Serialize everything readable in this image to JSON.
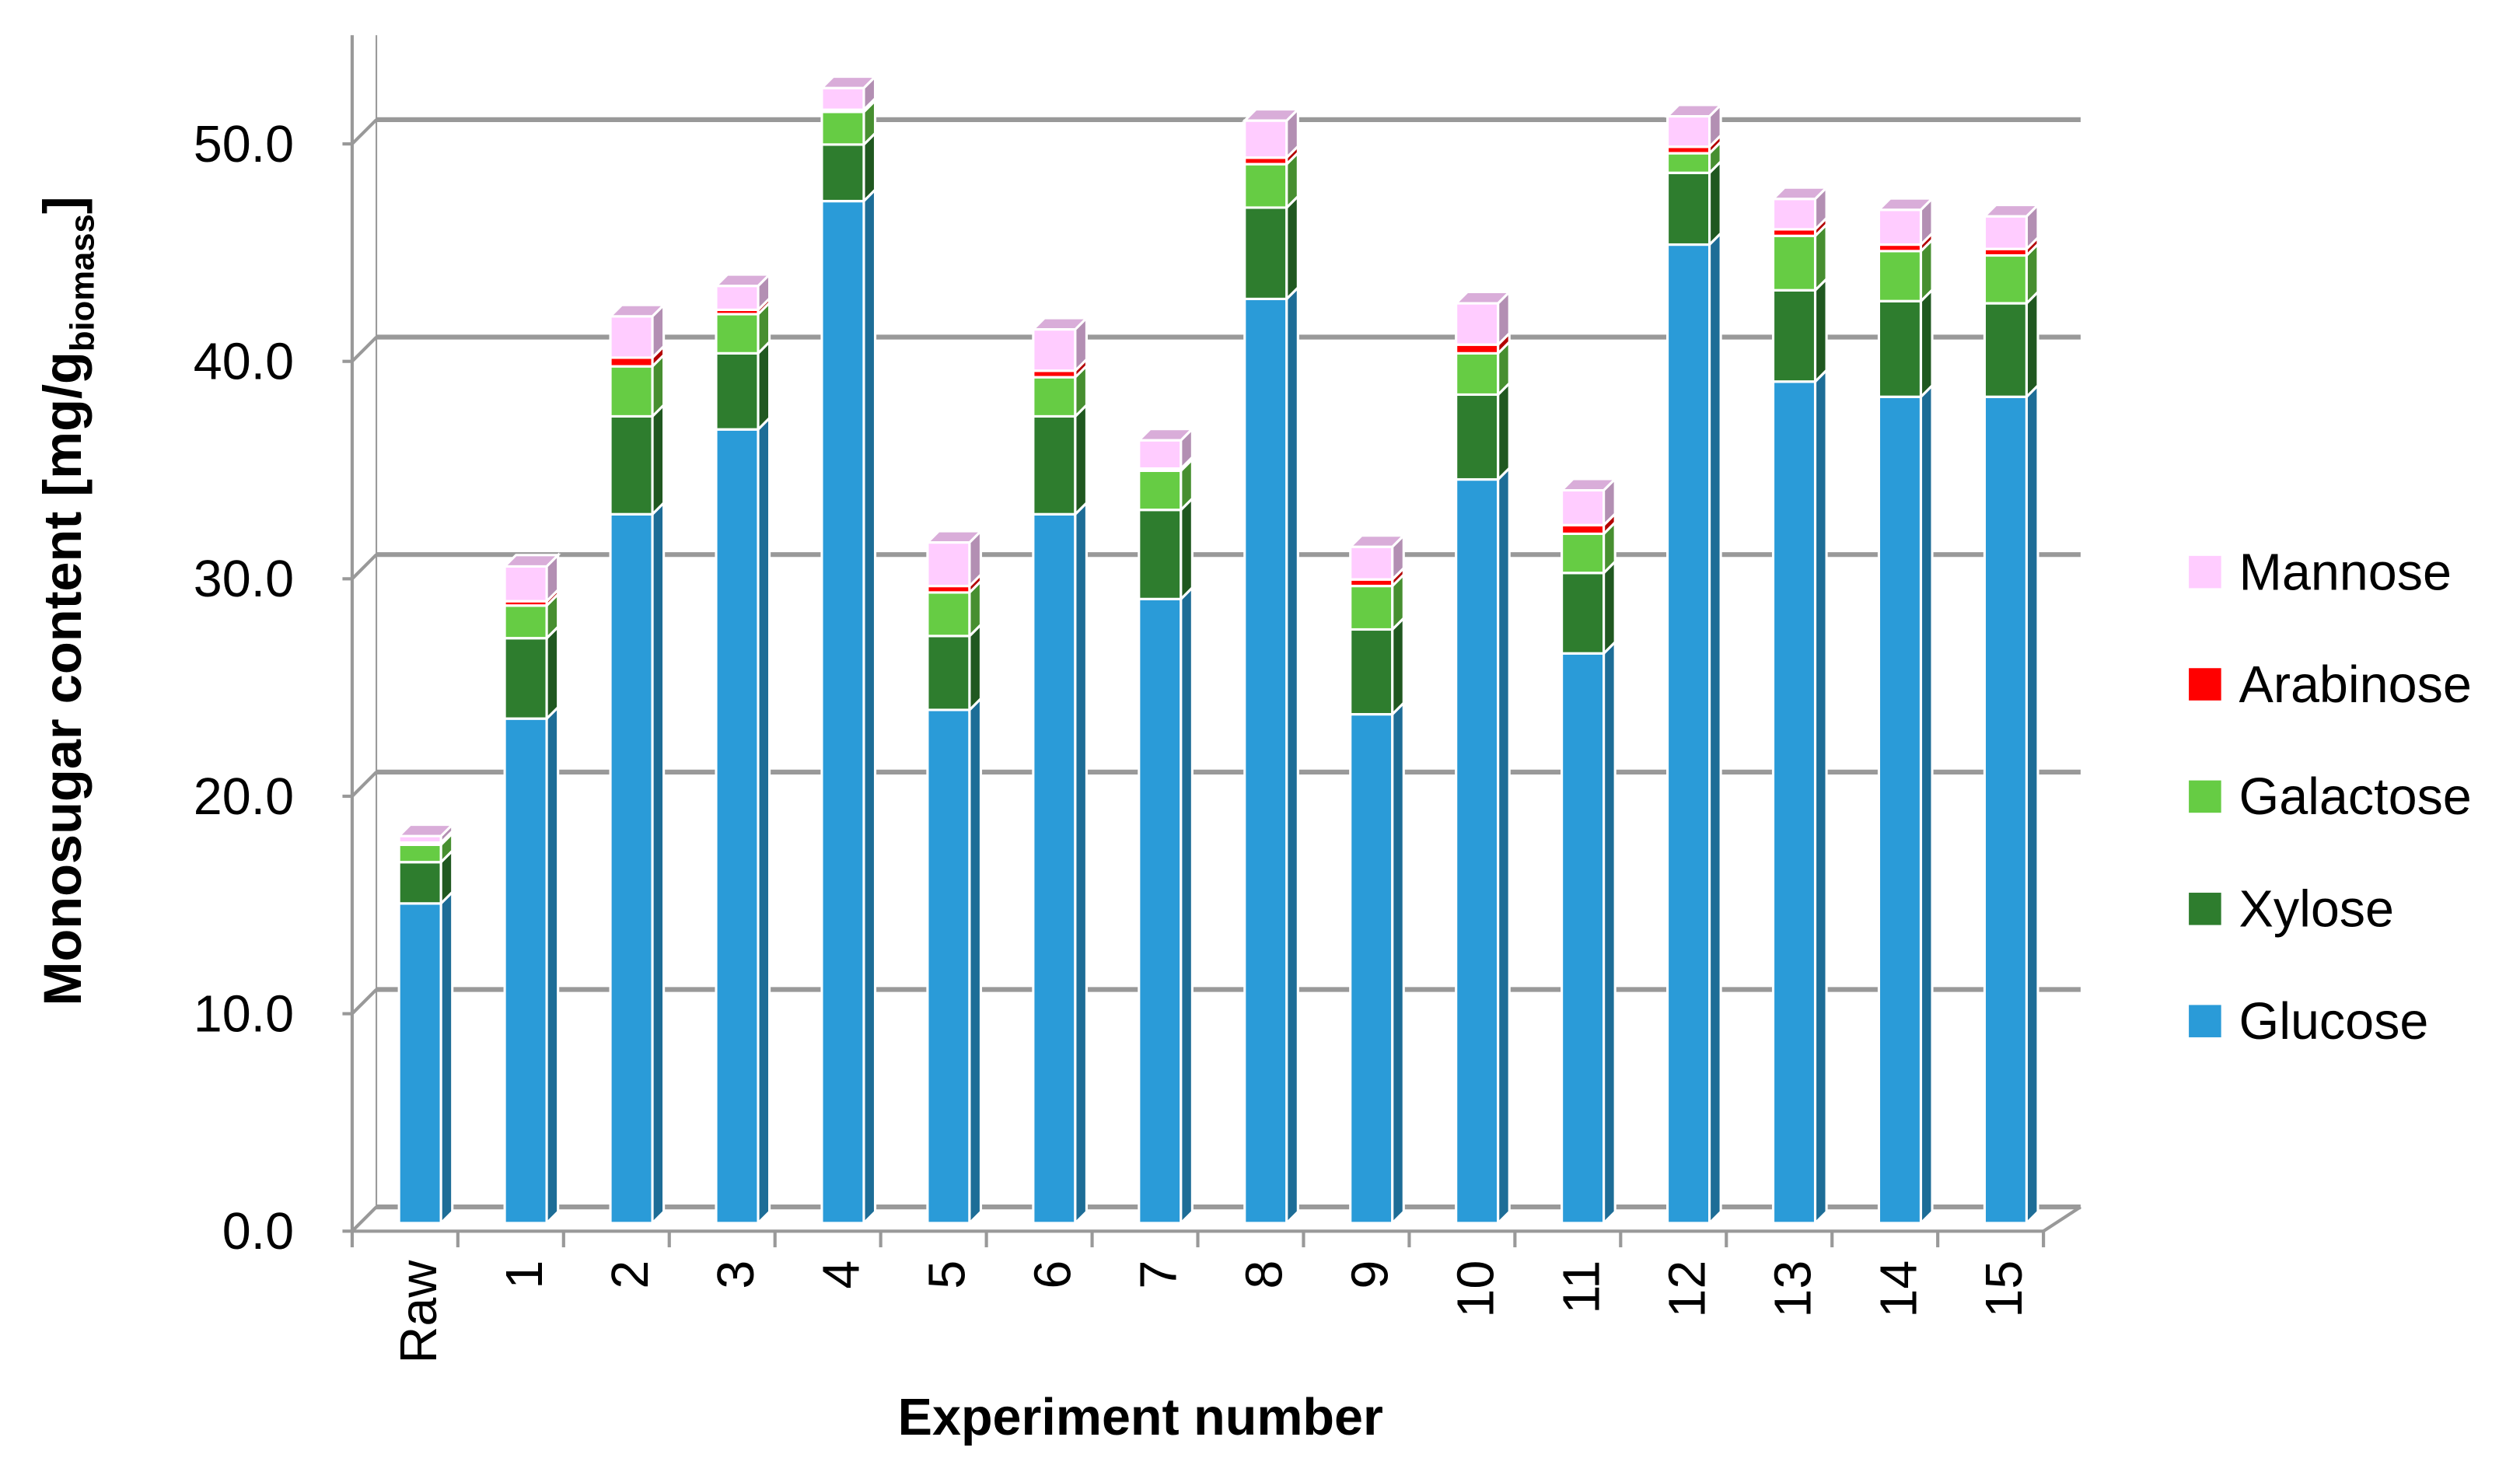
{
  "chart_data": {
    "type": "bar3d_stacked",
    "y_label": "Monosugar content [mg/g",
    "y_label_sub": "biomass",
    "y_label_end": "]",
    "x_label": "Experiment number",
    "categories": [
      "Raw",
      "1",
      "2",
      "3",
      "4",
      "5",
      "6",
      "7",
      "8",
      "9",
      "10",
      "11",
      "12",
      "13",
      "14",
      "15"
    ],
    "series": [
      {
        "name": "Glucose",
        "color": "#2a9bd8",
        "values": [
          14.7,
          23.2,
          32.6,
          36.5,
          47.0,
          23.6,
          32.6,
          28.7,
          42.5,
          23.4,
          34.2,
          26.2,
          45.0,
          38.7,
          38.0,
          38.0
        ]
      },
      {
        "name": "Xylose",
        "color": "#2e7d2e",
        "values": [
          1.9,
          3.7,
          4.5,
          3.5,
          2.6,
          3.4,
          4.5,
          4.1,
          4.2,
          3.9,
          3.9,
          3.7,
          3.3,
          4.2,
          4.4,
          4.3
        ]
      },
      {
        "name": "Galactose",
        "color": "#66cc44",
        "values": [
          0.8,
          1.5,
          2.3,
          1.8,
          1.5,
          2.0,
          1.8,
          1.8,
          2.0,
          2.0,
          1.9,
          1.8,
          0.9,
          2.5,
          2.3,
          2.2
        ]
      },
      {
        "name": "Arabinose",
        "color": "#ff0000",
        "values": [
          0.1,
          0.2,
          0.4,
          0.2,
          0.1,
          0.3,
          0.3,
          0.1,
          0.3,
          0.3,
          0.4,
          0.4,
          0.3,
          0.3,
          0.3,
          0.3
        ]
      },
      {
        "name": "Mannose",
        "color": "#ffccff",
        "values": [
          0.3,
          1.6,
          1.9,
          1.1,
          1.0,
          2.0,
          1.9,
          1.3,
          1.7,
          1.5,
          1.9,
          1.6,
          1.4,
          1.4,
          1.6,
          1.5
        ]
      }
    ],
    "ylim": [
      0,
      55
    ],
    "yticks": [
      {
        "value": 0,
        "label": "0.0"
      },
      {
        "value": 10,
        "label": "10.0"
      },
      {
        "value": 20,
        "label": "20.0"
      },
      {
        "value": 30,
        "label": "30.0"
      },
      {
        "value": 40,
        "label": "40.0"
      },
      {
        "value": 50,
        "label": "50.0"
      }
    ],
    "grid": true,
    "legend": "right"
  }
}
